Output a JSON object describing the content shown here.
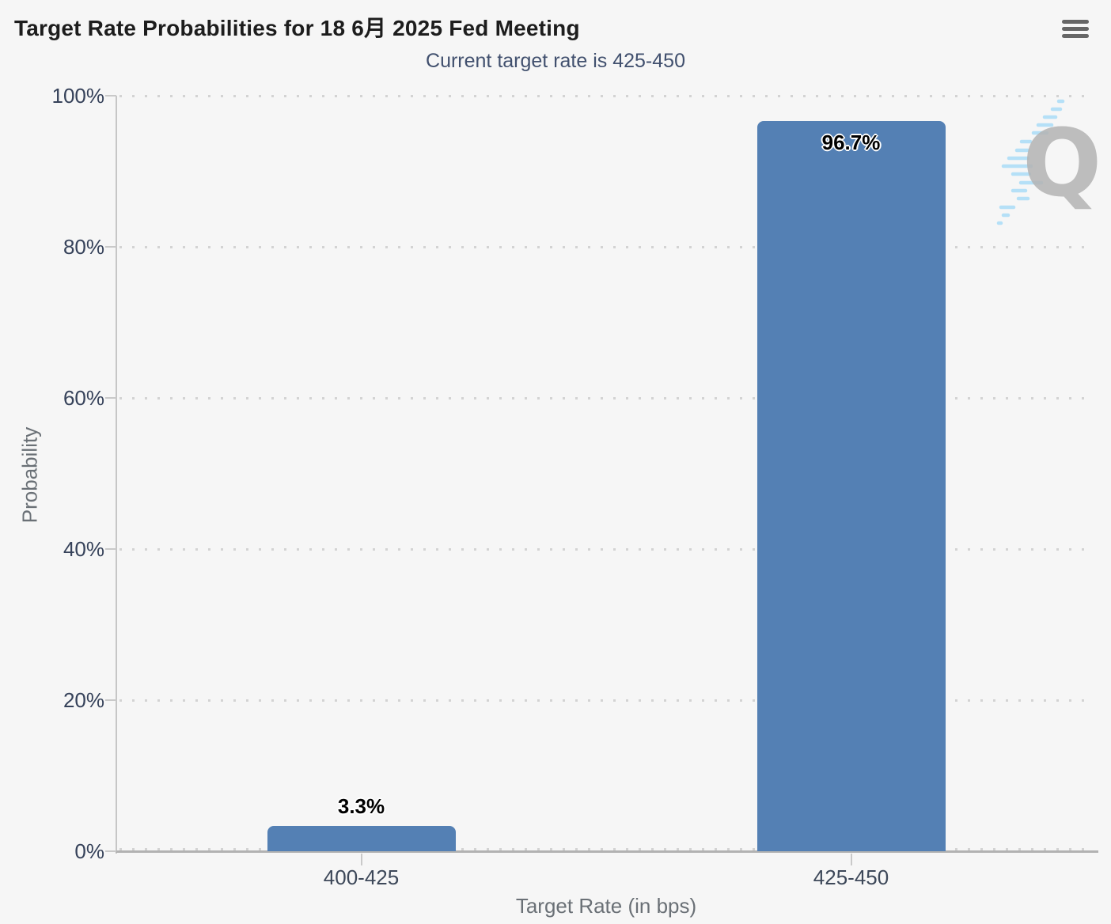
{
  "header": {
    "menu_icon": "hamburger-menu-icon"
  },
  "watermark": {
    "letter": "Q"
  },
  "colors": {
    "background": "#f6f6f6",
    "bar": "#5480b4",
    "title_text": "#1d1d1d",
    "subtitle_text": "#41506e",
    "tick_label_text": "#36425a",
    "axis_title_text": "#6a7076",
    "grid_dot": "#d3d3d3",
    "watermark_gray": "#b4b4b4",
    "watermark_blue": "#b5e0f7"
  },
  "chart_data": {
    "type": "bar",
    "title": "Target Rate Probabilities for 18 6月 2025 Fed Meeting",
    "subtitle": "Current target rate is 425-450",
    "categories": [
      "400-425",
      "425-450"
    ],
    "values": [
      3.3,
      96.7
    ],
    "data_labels": [
      "3.3%",
      "96.7%"
    ],
    "xlabel": "Target Rate (in bps)",
    "ylabel": "Probability",
    "ylim": [
      0,
      100
    ],
    "yticks": [
      0,
      20,
      40,
      60,
      80,
      100
    ],
    "ytick_labels": [
      "0%",
      "20%",
      "40%",
      "60%",
      "80%",
      "100%"
    ],
    "grid": "horizontal-dotted",
    "legend": "none",
    "bar_color": "#5480b4"
  }
}
